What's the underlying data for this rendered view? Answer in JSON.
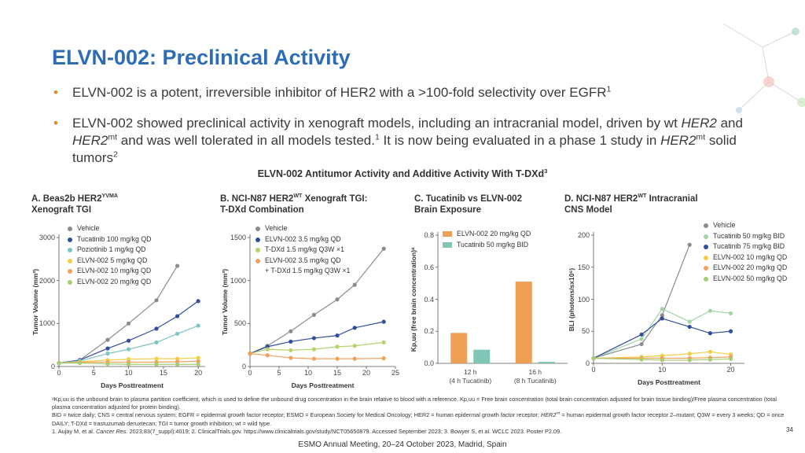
{
  "slide": {
    "title": "ELVN-002: Preclinical Activity",
    "bullets": [
      [
        {
          "text": "ELVN-002 is a potent, irreversible inhibitor of HER2 with a >100-fold selectivity over EGFR"
        },
        {
          "text": "1",
          "style": "sup"
        }
      ],
      [
        {
          "text": "ELVN-002 showed preclinical activity in xenograft models, including an intracranial model, driven by wt "
        },
        {
          "text": "HER2",
          "style": "italic"
        },
        {
          "text": " and "
        },
        {
          "text": "HER2",
          "style": "italic"
        },
        {
          "text": "mt",
          "style": "sup"
        },
        {
          "text": " and was well tolerated in all models tested."
        },
        {
          "text": "1",
          "style": "sup"
        },
        {
          "text": " It is now being evaluated in a phase 1 study in "
        },
        {
          "text": "HER2",
          "style": "italic"
        },
        {
          "text": "mt",
          "style": "sup"
        },
        {
          "text": " solid tumors"
        },
        {
          "text": "2",
          "style": "sup"
        }
      ]
    ],
    "figure_title": [
      {
        "text": "ELVN-002 Antitumor Activity and Additive Activity With T-DXd"
      },
      {
        "text": "3",
        "style": "sup"
      }
    ],
    "footnotes": [
      [
        {
          "text": "ᵃKp,uu is the unbound brain to plasma partition coefficient, which is used to define the unbound drug concentration in the brain relative to blood with a reference. Kp,uu = Free brain concentration (total brain concentration adjusted for brain tissue binding)/Free plasma concentration (total plasma concentration adjusted for protein binding)."
        }
      ],
      [
        {
          "text": "BID = twice daily; CNS = central nervous system; EGFR = epidermal growth factor receptor; ESMO = European Society for Medical Oncology; HER2 = human epidermal growth factor receptor; "
        },
        {
          "text": "HER2",
          "style": "italic"
        },
        {
          "text": "mt",
          "style": "sup"
        },
        {
          "text": " = human epidermal growth factor receptor 2–mutant; Q3W = every 3 weeks; QD = once DAILY; T-DXd = trastuzumab deruxtecan; TGI = tumor growth inhibition; wt = wild type."
        }
      ],
      [
        {
          "text": "1. Aujay M, et al. "
        },
        {
          "text": "Cancer Res.",
          "style": "italic"
        },
        {
          "text": " 2023;83(7_suppl):4019; 2. ClinicalTrials.gov. https://www.clinicaltrials.gov/study/NCT05650879. Accessed September 2023; 3. Bowyer S, et al. WCLC 2023. Poster P2.09."
        }
      ]
    ],
    "page_number": "34",
    "footer": "ESMO Annual Meeting, 20–24 October 2023, Madrid, Spain"
  },
  "chart_data": [
    {
      "type": "line",
      "title": [
        [
          {
            "text": "A. Beas2b HER2"
          },
          {
            "text": "YVMA",
            "style": "sup"
          }
        ],
        [
          {
            "text": "Xenograft TGI"
          }
        ]
      ],
      "x_label": "Days Posttreatment",
      "y_label": "Tumor Volume (mm³)",
      "x": [
        0,
        3,
        7,
        10,
        14,
        17,
        20
      ],
      "xlim": [
        0,
        21
      ],
      "xticks": [
        0,
        5,
        10,
        15,
        20
      ],
      "ylim": [
        0,
        3000
      ],
      "yticks": [
        0,
        1000,
        2000,
        3000
      ],
      "series": [
        {
          "name": "Vehicle",
          "color": "#8c8c8c",
          "values": [
            80,
            150,
            620,
            1000,
            1540,
            2340,
            null
          ]
        },
        {
          "name": "Tucatinib 100 mg/kg QD",
          "color": "#2f4f9e",
          "values": [
            80,
            150,
            420,
            600,
            880,
            1170,
            1520
          ]
        },
        {
          "name": "Poziotinib 1 mg/kg QD",
          "color": "#7cc6c2",
          "values": [
            80,
            130,
            300,
            400,
            560,
            760,
            950
          ]
        },
        {
          "name": "ELVN-002 5 mg/kg QD",
          "color": "#f3cf45",
          "values": [
            80,
            110,
            150,
            170,
            180,
            180,
            200
          ]
        },
        {
          "name": "ELVN-002 10 mg/kg QD",
          "color": "#f2a05a",
          "values": [
            80,
            100,
            100,
            100,
            100,
            110,
            120
          ]
        },
        {
          "name": "ELVN-002 20 mg/kg QD",
          "color": "#a3cf72",
          "values": [
            80,
            80,
            60,
            50,
            50,
            50,
            50
          ]
        }
      ]
    },
    {
      "type": "line",
      "title": [
        [
          {
            "text": "B. NCI-N87 HER2"
          },
          {
            "text": "WT",
            "style": "sup"
          },
          {
            "text": " Xenograft TGI:"
          }
        ],
        [
          {
            "text": "T-DXd Combination"
          }
        ]
      ],
      "x_label": "Days Posttreatment",
      "y_label": "Tumor Volume (mm³)",
      "x": [
        0,
        3,
        7,
        11,
        15,
        18,
        23
      ],
      "xlim": [
        0,
        25
      ],
      "xticks": [
        0,
        5,
        10,
        15,
        20,
        25
      ],
      "ylim": [
        0,
        1500
      ],
      "yticks": [
        0,
        500,
        1000,
        1500
      ],
      "series": [
        {
          "name": "Vehicle",
          "color": "#8c8c8c",
          "values": [
            150,
            240,
            410,
            600,
            780,
            950,
            1370
          ]
        },
        {
          "name": "ELVN-002 3.5 mg/kg QD",
          "color": "#2f4f9e",
          "values": [
            150,
            230,
            290,
            330,
            360,
            450,
            520
          ]
        },
        {
          "name": "T-DXd 1.5 mg/kg Q3W ×1",
          "color": "#b5d36b",
          "values": [
            150,
            200,
            190,
            200,
            230,
            240,
            280
          ]
        },
        {
          "name": "ELVN-002 3.5 mg/kg QD\n+ T-DXd 1.5 mg/kg Q3W ×1",
          "color": "#f2a05a",
          "values": [
            150,
            130,
            100,
            90,
            90,
            90,
            95
          ]
        }
      ]
    },
    {
      "type": "bar",
      "title": [
        [
          {
            "text": "C. Tucatinib vs ELVN-002"
          }
        ],
        [
          {
            "text": "Brain Exposure"
          }
        ]
      ],
      "y_label": "Kp,uu (free brain concentration)ᵃ",
      "categories": [
        "12 h\n(4 h Tucatinib)",
        "16 h\n(8 h Tucatinib)"
      ],
      "ylim": [
        0,
        0.8
      ],
      "yticks": [
        {
          "value": 0,
          "label": "0.0"
        },
        0.2,
        0.4,
        0.6,
        0.8
      ],
      "series": [
        {
          "name": "ELVN-002 20 mg/kg QD",
          "color": "#f0a055",
          "values": [
            0.19,
            0.51
          ]
        },
        {
          "name": "Tucatinib 50 mg/kg BID",
          "color": "#7fc7b4",
          "values": [
            0.085,
            0.01
          ]
        }
      ]
    },
    {
      "type": "line",
      "title": [
        [
          {
            "text": "D. NCI-N87 HER2"
          },
          {
            "text": "WT",
            "style": "sup"
          },
          {
            "text": " Intracranial"
          }
        ],
        [
          {
            "text": "CNS Model"
          }
        ]
      ],
      "x_label": "Days Posttreatment",
      "y_label": "BLI (photons/sx10⁶)",
      "x": [
        0,
        7,
        10,
        14,
        17,
        20
      ],
      "xlim": [
        0,
        22
      ],
      "xticks": [
        0,
        10,
        20
      ],
      "ylim": [
        0,
        200
      ],
      "yticks": [
        0,
        50,
        100,
        150,
        200
      ],
      "series": [
        {
          "name": "Vehicle",
          "color": "#8c8c8c",
          "values": [
            8,
            30,
            75,
            185,
            null,
            null
          ]
        },
        {
          "name": "Tucatinib 50 mg/kg BID",
          "color": "#9fd4a8",
          "values": [
            8,
            38,
            85,
            65,
            82,
            78
          ]
        },
        {
          "name": "Tucatinib 75 mg/kg BID",
          "color": "#2f4f9e",
          "values": [
            8,
            45,
            70,
            57,
            47,
            50
          ]
        },
        {
          "name": "ELVN-002 10 mg/kg QD",
          "color": "#f3cf45",
          "values": [
            8,
            10,
            12,
            15,
            18,
            14
          ]
        },
        {
          "name": "ELVN-002 20 mg/kg QD",
          "color": "#f2a05a",
          "values": [
            8,
            8,
            8,
            8,
            9,
            10
          ]
        },
        {
          "name": "ELVN-002 50 mg/kg QD",
          "color": "#a3cf72",
          "values": [
            8,
            6,
            5,
            5,
            6,
            7
          ]
        }
      ]
    }
  ]
}
